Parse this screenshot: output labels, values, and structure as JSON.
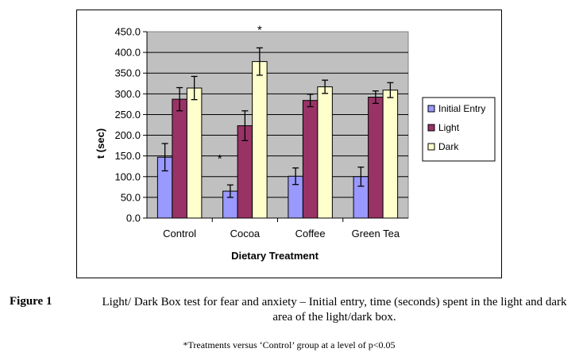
{
  "chart_data": {
    "type": "bar",
    "categories": [
      "Control",
      "Cocoa",
      "Coffee",
      "Green Tea"
    ],
    "series": [
      {
        "name": "Initial Entry",
        "color": "#9999ff",
        "values": [
          147,
          65,
          101,
          100
        ],
        "errors": [
          33,
          15,
          20,
          23
        ]
      },
      {
        "name": "Light",
        "color": "#993366",
        "values": [
          287,
          223,
          284,
          292
        ],
        "errors": [
          28,
          36,
          15,
          15
        ]
      },
      {
        "name": "Dark",
        "color": "#ffffcc",
        "values": [
          314,
          378,
          317,
          309
        ],
        "errors": [
          28,
          33,
          16,
          18
        ]
      }
    ],
    "ylabel": "t (sec)",
    "xlabel": "Dietary Treatment",
    "ylim": [
      0,
      450
    ],
    "ytick_values": [
      0,
      50,
      100,
      150,
      200,
      250,
      300,
      350,
      400,
      450
    ],
    "ytick_labels": [
      "0.0",
      "50.0",
      "100.0",
      "150.0",
      "200.0",
      "250.0",
      "300.0",
      "350.0",
      "400.0",
      "450.0"
    ],
    "plot_background": "#c0c0c0",
    "grid": "horizontal",
    "legend_placement": "right",
    "annotations": [
      {
        "text": "*",
        "category": "Cocoa",
        "series": "Initial Entry"
      },
      {
        "text": "*",
        "category": "Cocoa",
        "series": "Dark"
      }
    ]
  },
  "caption": {
    "label": "Figure 1",
    "text": "Light/ Dark Box test for fear and anxiety – Initial entry, time (seconds) spent in the light and dark area of the light/dark box."
  },
  "footnote": "*Treatments versus ‘Control’ group at a level of p<0.05"
}
